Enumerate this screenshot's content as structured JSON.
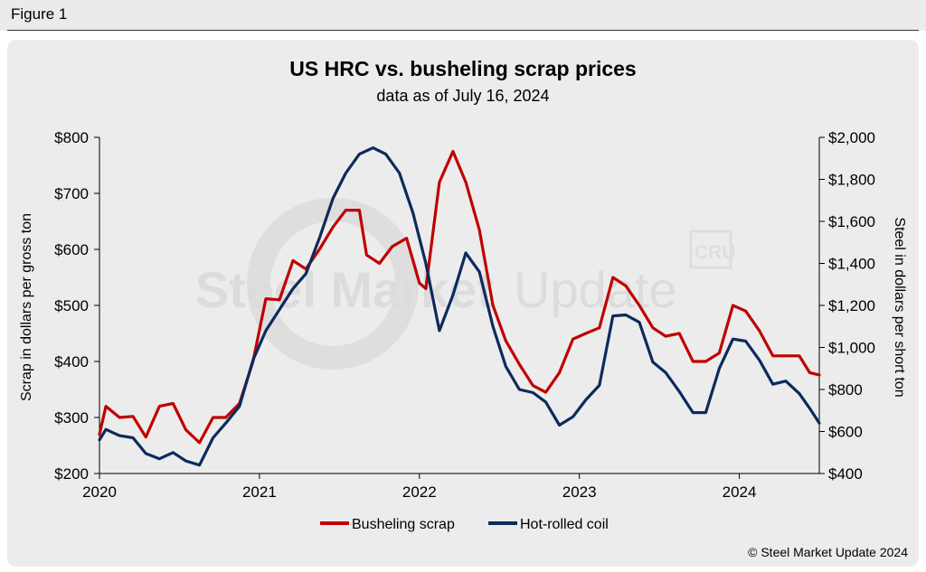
{
  "figure_label": "Figure 1",
  "watermark": {
    "brand_a": "Steel Market",
    "brand_b": "Update",
    "logo": "CRU"
  },
  "credit": "© Steel Market Update 2024",
  "colors": {
    "scrap": "#c00000",
    "hrc": "#0d2a5c",
    "panel": "#ececec"
  },
  "chart_data": {
    "type": "line",
    "title": "US HRC vs. busheling scrap prices",
    "subtitle": "data as of July 16, 2024",
    "ylabel_left": "Scrap in dollars per gross ton",
    "ylabel_right": "Steel in dollars per short ton",
    "x_ticks": [
      "2020",
      "2021",
      "2022",
      "2023",
      "2024"
    ],
    "xlim": [
      2020.0,
      2024.5
    ],
    "ylim_left": [
      200,
      800
    ],
    "ylim_right": [
      400,
      2000
    ],
    "y_ticks_left": [
      "$200",
      "$300",
      "$400",
      "$500",
      "$600",
      "$700",
      "$800"
    ],
    "y_ticks_right": [
      "$400",
      "$600",
      "$800",
      "$1,000",
      "$1,200",
      "$1,400",
      "$1,600",
      "$1,800",
      "$2,000"
    ],
    "legend_position": "bottom-center",
    "grid": false,
    "series": [
      {
        "name": "Busheling scrap",
        "axis": "left",
        "points": [
          [
            2020.0,
            270
          ],
          [
            2020.04,
            320
          ],
          [
            2020.125,
            300
          ],
          [
            2020.21,
            302
          ],
          [
            2020.29,
            265
          ],
          [
            2020.375,
            320
          ],
          [
            2020.46,
            325
          ],
          [
            2020.54,
            278
          ],
          [
            2020.625,
            255
          ],
          [
            2020.71,
            300
          ],
          [
            2020.79,
            300
          ],
          [
            2020.875,
            325
          ],
          [
            2020.96,
            400
          ],
          [
            2021.04,
            512
          ],
          [
            2021.125,
            510
          ],
          [
            2021.21,
            580
          ],
          [
            2021.29,
            565
          ],
          [
            2021.375,
            600
          ],
          [
            2021.46,
            640
          ],
          [
            2021.54,
            670
          ],
          [
            2021.625,
            670
          ],
          [
            2021.67,
            590
          ],
          [
            2021.75,
            575
          ],
          [
            2021.83,
            605
          ],
          [
            2021.92,
            620
          ],
          [
            2022.0,
            540
          ],
          [
            2022.04,
            530
          ],
          [
            2022.125,
            720
          ],
          [
            2022.21,
            775
          ],
          [
            2022.29,
            720
          ],
          [
            2022.375,
            635
          ],
          [
            2022.46,
            500
          ],
          [
            2022.54,
            437
          ],
          [
            2022.625,
            395
          ],
          [
            2022.71,
            357
          ],
          [
            2022.79,
            345
          ],
          [
            2022.875,
            380
          ],
          [
            2022.96,
            440
          ],
          [
            2023.04,
            450
          ],
          [
            2023.125,
            460
          ],
          [
            2023.21,
            550
          ],
          [
            2023.29,
            535
          ],
          [
            2023.375,
            500
          ],
          [
            2023.46,
            460
          ],
          [
            2023.54,
            445
          ],
          [
            2023.625,
            450
          ],
          [
            2023.71,
            400
          ],
          [
            2023.79,
            400
          ],
          [
            2023.875,
            415
          ],
          [
            2023.96,
            500
          ],
          [
            2024.04,
            490
          ],
          [
            2024.125,
            455
          ],
          [
            2024.21,
            410
          ],
          [
            2024.29,
            410
          ],
          [
            2024.375,
            410
          ],
          [
            2024.44,
            380
          ],
          [
            2024.5,
            376
          ]
        ]
      },
      {
        "name": "Hot-rolled coil",
        "axis": "right",
        "points": [
          [
            2020.0,
            560
          ],
          [
            2020.04,
            610
          ],
          [
            2020.125,
            580
          ],
          [
            2020.21,
            570
          ],
          [
            2020.29,
            495
          ],
          [
            2020.375,
            470
          ],
          [
            2020.46,
            500
          ],
          [
            2020.54,
            460
          ],
          [
            2020.625,
            440
          ],
          [
            2020.71,
            570
          ],
          [
            2020.79,
            640
          ],
          [
            2020.875,
            720
          ],
          [
            2020.96,
            940
          ],
          [
            2021.04,
            1080
          ],
          [
            2021.125,
            1180
          ],
          [
            2021.21,
            1280
          ],
          [
            2021.29,
            1350
          ],
          [
            2021.375,
            1520
          ],
          [
            2021.46,
            1710
          ],
          [
            2021.54,
            1830
          ],
          [
            2021.625,
            1920
          ],
          [
            2021.71,
            1950
          ],
          [
            2021.79,
            1920
          ],
          [
            2021.875,
            1830
          ],
          [
            2021.96,
            1640
          ],
          [
            2022.04,
            1400
          ],
          [
            2022.125,
            1080
          ],
          [
            2022.21,
            1250
          ],
          [
            2022.29,
            1450
          ],
          [
            2022.375,
            1360
          ],
          [
            2022.46,
            1100
          ],
          [
            2022.54,
            910
          ],
          [
            2022.625,
            800
          ],
          [
            2022.71,
            785
          ],
          [
            2022.79,
            740
          ],
          [
            2022.875,
            630
          ],
          [
            2022.96,
            670
          ],
          [
            2023.04,
            750
          ],
          [
            2023.125,
            820
          ],
          [
            2023.21,
            1150
          ],
          [
            2023.29,
            1155
          ],
          [
            2023.375,
            1120
          ],
          [
            2023.46,
            930
          ],
          [
            2023.54,
            880
          ],
          [
            2023.625,
            790
          ],
          [
            2023.71,
            690
          ],
          [
            2023.79,
            690
          ],
          [
            2023.875,
            900
          ],
          [
            2023.96,
            1040
          ],
          [
            2024.04,
            1030
          ],
          [
            2024.125,
            940
          ],
          [
            2024.21,
            825
          ],
          [
            2024.29,
            840
          ],
          [
            2024.375,
            780
          ],
          [
            2024.44,
            710
          ],
          [
            2024.5,
            640
          ]
        ]
      }
    ]
  }
}
